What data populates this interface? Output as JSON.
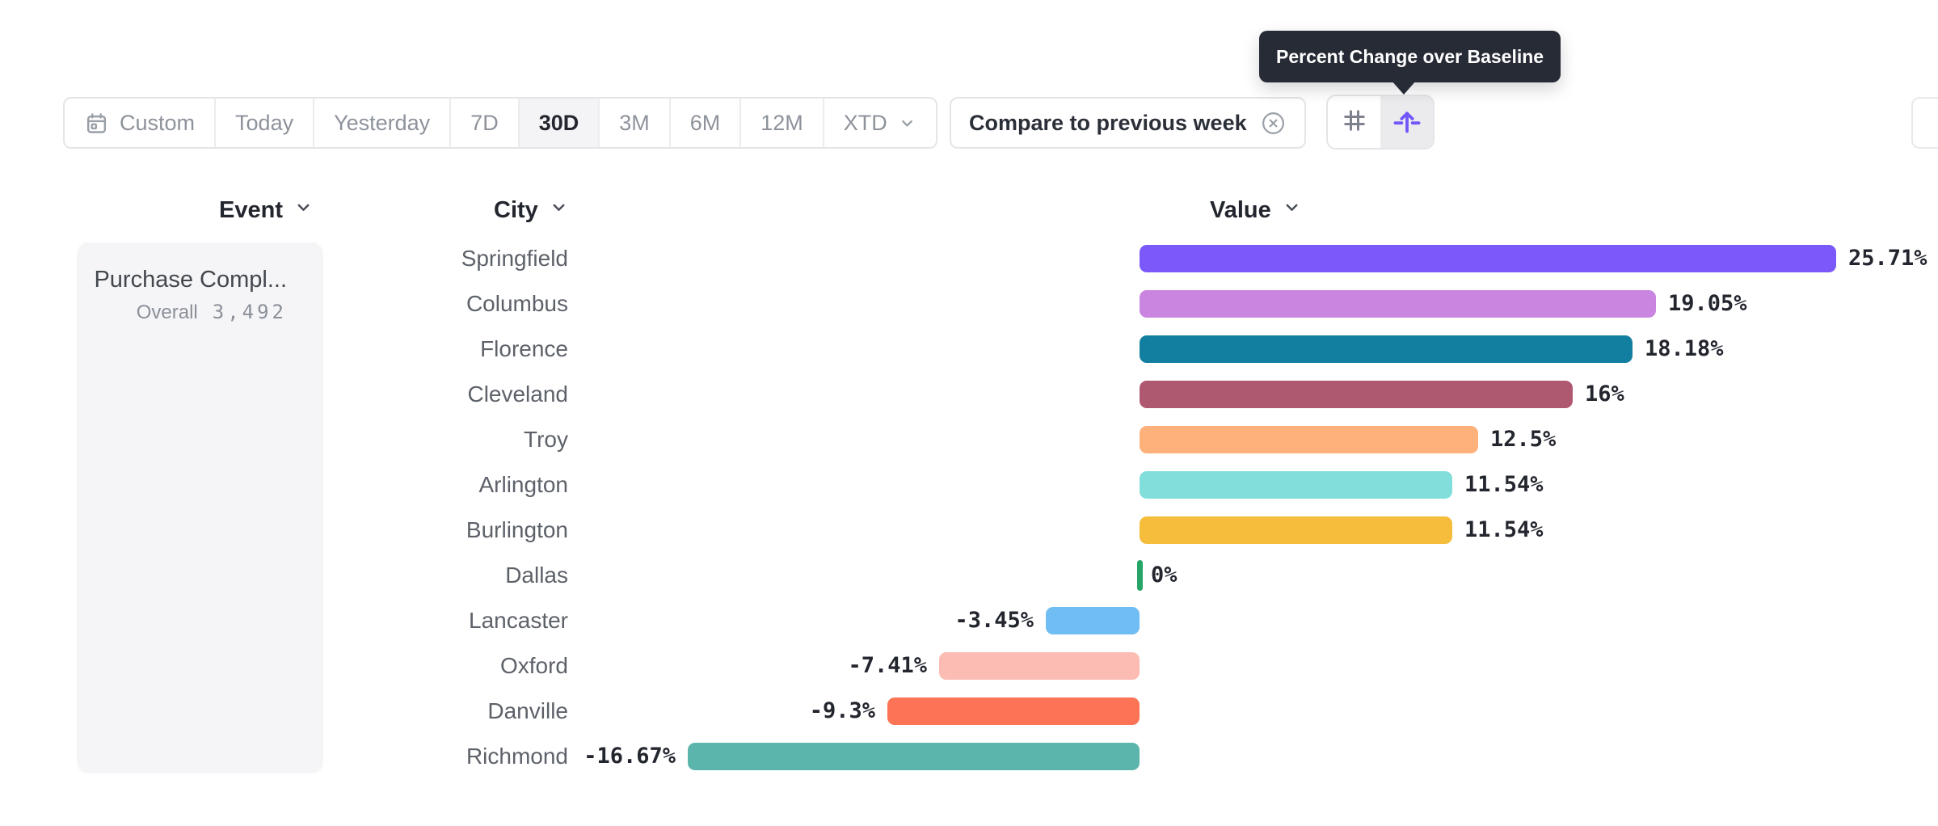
{
  "tooltip": {
    "text": "Percent Change over Baseline"
  },
  "toolbar": {
    "date_buttons": [
      {
        "label": "Custom",
        "icon": "calendar-icon",
        "selected": false
      },
      {
        "label": "Today",
        "selected": false
      },
      {
        "label": "Yesterday",
        "selected": false
      },
      {
        "label": "7D",
        "selected": false
      },
      {
        "label": "30D",
        "selected": true
      },
      {
        "label": "3M",
        "selected": false
      },
      {
        "label": "6M",
        "selected": false
      },
      {
        "label": "12M",
        "selected": false
      },
      {
        "label": "XTD",
        "selected": false,
        "has_chevron": true
      }
    ],
    "compare_chip": {
      "label": "Compare to previous week",
      "close_icon": "circle-x-icon"
    },
    "display_toggle": [
      {
        "icon": "hash-icon",
        "selected": false
      },
      {
        "icon": "arrow-up-baseline-icon",
        "selected": true
      }
    ],
    "accent_color": "#7156f9"
  },
  "columns": {
    "event": "Event",
    "city": "City",
    "value": "Value"
  },
  "event_panel": {
    "event_name": "Purchase Compl...",
    "overall_label": "Overall",
    "overall_value": "3,492"
  },
  "chart_data": {
    "type": "bar",
    "orientation": "horizontal",
    "value_format": "percent_change_over_baseline",
    "zero_tick_color": "#27a567",
    "categories": [
      "Springfield",
      "Columbus",
      "Florence",
      "Cleveland",
      "Troy",
      "Arlington",
      "Burlington",
      "Dallas",
      "Lancaster",
      "Oxford",
      "Danville",
      "Richmond"
    ],
    "values": [
      25.71,
      19.05,
      18.18,
      16,
      12.5,
      11.54,
      11.54,
      0,
      -3.45,
      -7.41,
      -9.3,
      -16.67
    ],
    "rows": [
      {
        "city": "Springfield",
        "value": 25.71,
        "label": "25.71%",
        "color": "#7a58fa"
      },
      {
        "city": "Columbus",
        "value": 19.05,
        "label": "19.05%",
        "color": "#c985df"
      },
      {
        "city": "Florence",
        "value": 18.18,
        "label": "18.18%",
        "color": "#137fa0"
      },
      {
        "city": "Cleveland",
        "value": 16,
        "label": "16%",
        "color": "#af5971"
      },
      {
        "city": "Troy",
        "value": 12.5,
        "label": "12.5%",
        "color": "#feb17b"
      },
      {
        "city": "Arlington",
        "value": 11.54,
        "label": "11.54%",
        "color": "#81deda"
      },
      {
        "city": "Burlington",
        "value": 11.54,
        "label": "11.54%",
        "color": "#f5bd3b"
      },
      {
        "city": "Dallas",
        "value": 0,
        "label": "0%",
        "color": "#27a567"
      },
      {
        "city": "Lancaster",
        "value": -3.45,
        "label": "-3.45%",
        "color": "#70bdf4"
      },
      {
        "city": "Oxford",
        "value": -7.41,
        "label": "-7.41%",
        "color": "#fcbbb3"
      },
      {
        "city": "Danville",
        "value": -9.3,
        "label": "-9.3%",
        "color": "#fc7455"
      },
      {
        "city": "Richmond",
        "value": -16.67,
        "label": "-16.67%",
        "color": "#5bb5ac"
      }
    ]
  }
}
